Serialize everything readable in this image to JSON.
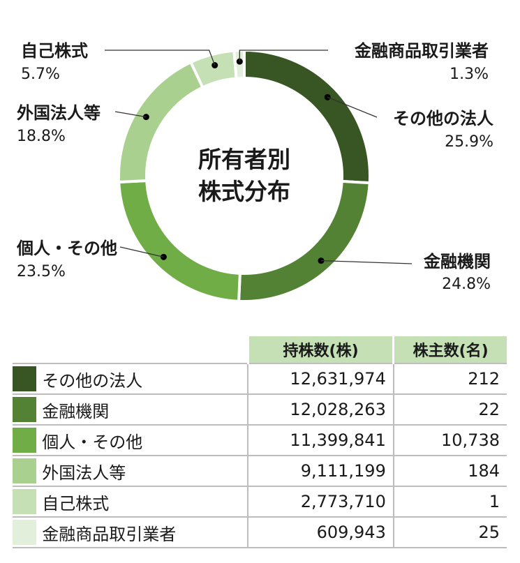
{
  "chart_data": {
    "type": "pie",
    "center_title": [
      "所有者別",
      "株式分布"
    ],
    "slices": [
      {
        "name": "その他の法人",
        "pct": "25.9%",
        "value": 25.9,
        "color": "#375623"
      },
      {
        "name": "金融機関",
        "pct": "24.8%",
        "value": 24.8,
        "color": "#548235"
      },
      {
        "name": "個人・その他",
        "pct": "23.5%",
        "value": 23.5,
        "color": "#70ad47"
      },
      {
        "name": "外国法人等",
        "pct": "18.8%",
        "value": 18.8,
        "color": "#a9d08e"
      },
      {
        "name": "自己株式",
        "pct": "5.7%",
        "value": 5.7,
        "color": "#c5e0b4"
      },
      {
        "name": "金融商品取引業者",
        "pct": "1.3%",
        "value": 1.3,
        "color": "#e2efda"
      }
    ]
  },
  "table": {
    "headers": [
      "持株数(株)",
      "株主数(名)"
    ],
    "rows": [
      {
        "name": "その他の法人",
        "shares": "12,631,974",
        "holders": "212",
        "color": "#375623"
      },
      {
        "name": "金融機関",
        "shares": "12,028,263",
        "holders": "22",
        "color": "#548235"
      },
      {
        "name": "個人・その他",
        "shares": "11,399,841",
        "holders": "10,738",
        "color": "#70ad47"
      },
      {
        "name": "外国法人等",
        "shares": "9,111,199",
        "holders": "184",
        "color": "#a9d08e"
      },
      {
        "name": "自己株式",
        "shares": "2,773,710",
        "holders": "1",
        "color": "#c5e0b4"
      },
      {
        "name": "金融商品取引業者",
        "shares": "609,943",
        "holders": "25",
        "color": "#e2efda"
      }
    ]
  }
}
